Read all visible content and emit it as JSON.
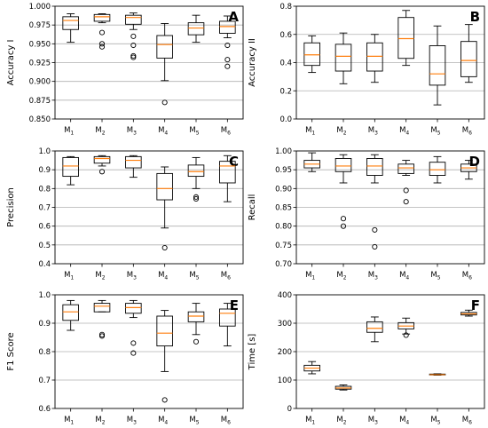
{
  "chart_data": [
    {
      "type": "box",
      "panel": "A",
      "ylabel": "Accuracy I",
      "categories": [
        "M1",
        "M2",
        "M3",
        "M4",
        "M5",
        "M6"
      ],
      "ylim": [
        0.85,
        1.0
      ],
      "yticks": [
        0.85,
        0.875,
        0.9,
        0.925,
        0.95,
        0.975,
        1.0
      ],
      "ytick_labels": [
        "0.850",
        "0.875",
        "0.900",
        "0.925",
        "0.950",
        "0.975",
        "1.000"
      ],
      "grid": true,
      "boxes": [
        {
          "whislo": 0.952,
          "q1": 0.969,
          "med": 0.981,
          "q3": 0.986,
          "whishi": 0.99,
          "fliers": []
        },
        {
          "whislo": 0.978,
          "q1": 0.98,
          "med": 0.986,
          "q3": 0.989,
          "whishi": 0.99,
          "fliers": [
            0.965,
            0.95,
            0.946
          ]
        },
        {
          "whislo": 0.969,
          "q1": 0.976,
          "med": 0.985,
          "q3": 0.988,
          "whishi": 0.991,
          "fliers": [
            0.96,
            0.948,
            0.934,
            0.932
          ]
        },
        {
          "whislo": 0.901,
          "q1": 0.931,
          "med": 0.949,
          "q3": 0.961,
          "whishi": 0.977,
          "fliers": [
            0.872
          ]
        },
        {
          "whislo": 0.952,
          "q1": 0.962,
          "med": 0.971,
          "q3": 0.978,
          "whishi": 0.988,
          "fliers": []
        },
        {
          "whislo": 0.958,
          "q1": 0.964,
          "med": 0.973,
          "q3": 0.98,
          "whishi": 0.987,
          "fliers": [
            0.948,
            0.929,
            0.92
          ]
        }
      ]
    },
    {
      "type": "box",
      "panel": "B",
      "ylabel": "Accuracy II",
      "categories": [
        "M1",
        "M2",
        "M3",
        "M4",
        "M5",
        "M6"
      ],
      "ylim": [
        0.0,
        0.8
      ],
      "yticks": [
        0.0,
        0.2,
        0.4,
        0.6,
        0.8
      ],
      "ytick_labels": [
        "0.0",
        "0.2",
        "0.4",
        "0.6",
        "0.8"
      ],
      "grid": true,
      "boxes": [
        {
          "whislo": 0.33,
          "q1": 0.38,
          "med": 0.455,
          "q3": 0.54,
          "whishi": 0.59,
          "fliers": []
        },
        {
          "whislo": 0.25,
          "q1": 0.34,
          "med": 0.445,
          "q3": 0.53,
          "whishi": 0.61,
          "fliers": []
        },
        {
          "whislo": 0.26,
          "q1": 0.34,
          "med": 0.445,
          "q3": 0.54,
          "whishi": 0.6,
          "fliers": []
        },
        {
          "whislo": 0.38,
          "q1": 0.43,
          "med": 0.57,
          "q3": 0.72,
          "whishi": 0.77,
          "fliers": []
        },
        {
          "whislo": 0.1,
          "q1": 0.24,
          "med": 0.32,
          "q3": 0.52,
          "whishi": 0.66,
          "fliers": []
        },
        {
          "whislo": 0.26,
          "q1": 0.3,
          "med": 0.415,
          "q3": 0.55,
          "whishi": 0.67,
          "fliers": []
        }
      ]
    },
    {
      "type": "box",
      "panel": "C",
      "ylabel": "Precision",
      "categories": [
        "M1",
        "M2",
        "M3",
        "M4",
        "M5",
        "M6"
      ],
      "ylim": [
        0.4,
        1.0
      ],
      "yticks": [
        0.4,
        0.5,
        0.6,
        0.7,
        0.8,
        0.9,
        1.0
      ],
      "ytick_labels": [
        "0.4",
        "0.5",
        "0.6",
        "0.7",
        "0.8",
        "0.9",
        "1.0"
      ],
      "grid": true,
      "boxes": [
        {
          "whislo": 0.82,
          "q1": 0.865,
          "med": 0.92,
          "q3": 0.965,
          "whishi": 0.97,
          "fliers": []
        },
        {
          "whislo": 0.92,
          "q1": 0.935,
          "med": 0.96,
          "q3": 0.97,
          "whishi": 0.975,
          "fliers": [
            0.89
          ]
        },
        {
          "whislo": 0.86,
          "q1": 0.91,
          "med": 0.95,
          "q3": 0.97,
          "whishi": 0.975,
          "fliers": []
        },
        {
          "whislo": 0.59,
          "q1": 0.74,
          "med": 0.8,
          "q3": 0.88,
          "whishi": 0.915,
          "fliers": [
            0.485
          ]
        },
        {
          "whislo": 0.8,
          "q1": 0.865,
          "med": 0.89,
          "q3": 0.925,
          "whishi": 0.965,
          "fliers": [
            0.755,
            0.745
          ]
        },
        {
          "whislo": 0.73,
          "q1": 0.83,
          "med": 0.92,
          "q3": 0.945,
          "whishi": 0.975,
          "fliers": []
        }
      ]
    },
    {
      "type": "box",
      "panel": "D",
      "ylabel": "Recall",
      "categories": [
        "M1",
        "M2",
        "M3",
        "M4",
        "M5",
        "M6"
      ],
      "ylim": [
        0.7,
        1.0
      ],
      "yticks": [
        0.7,
        0.75,
        0.8,
        0.85,
        0.9,
        0.95,
        1.0
      ],
      "ytick_labels": [
        "0.70",
        "0.75",
        "0.80",
        "0.85",
        "0.90",
        "0.95",
        "1.00"
      ],
      "grid": true,
      "boxes": [
        {
          "whislo": 0.945,
          "q1": 0.955,
          "med": 0.965,
          "q3": 0.975,
          "whishi": 0.995,
          "fliers": []
        },
        {
          "whislo": 0.915,
          "q1": 0.945,
          "med": 0.96,
          "q3": 0.98,
          "whishi": 0.99,
          "fliers": [
            0.82,
            0.8
          ]
        },
        {
          "whislo": 0.915,
          "q1": 0.935,
          "med": 0.96,
          "q3": 0.98,
          "whishi": 0.99,
          "fliers": [
            0.79,
            0.745
          ]
        },
        {
          "whislo": 0.935,
          "q1": 0.94,
          "med": 0.955,
          "q3": 0.965,
          "whishi": 0.975,
          "fliers": [
            0.895,
            0.865
          ]
        },
        {
          "whislo": 0.915,
          "q1": 0.935,
          "med": 0.95,
          "q3": 0.97,
          "whishi": 0.985,
          "fliers": []
        },
        {
          "whislo": 0.925,
          "q1": 0.945,
          "med": 0.955,
          "q3": 0.965,
          "whishi": 0.975,
          "fliers": []
        }
      ]
    },
    {
      "type": "box",
      "panel": "E",
      "ylabel": "F1 Score",
      "categories": [
        "M1",
        "M2",
        "M3",
        "M4",
        "M5",
        "M6"
      ],
      "ylim": [
        0.6,
        1.0
      ],
      "yticks": [
        0.6,
        0.7,
        0.8,
        0.9,
        1.0
      ],
      "ytick_labels": [
        "0.6",
        "0.7",
        "0.8",
        "0.9",
        "1.0"
      ],
      "grid": true,
      "boxes": [
        {
          "whislo": 0.875,
          "q1": 0.91,
          "med": 0.94,
          "q3": 0.965,
          "whishi": 0.98,
          "fliers": []
        },
        {
          "whislo": 0.94,
          "q1": 0.94,
          "med": 0.96,
          "q3": 0.97,
          "whishi": 0.98,
          "fliers": [
            0.86,
            0.855
          ]
        },
        {
          "whislo": 0.92,
          "q1": 0.935,
          "med": 0.955,
          "q3": 0.97,
          "whishi": 0.98,
          "fliers": [
            0.83,
            0.795
          ]
        },
        {
          "whislo": 0.73,
          "q1": 0.82,
          "med": 0.865,
          "q3": 0.925,
          "whishi": 0.945,
          "fliers": [
            0.63
          ]
        },
        {
          "whislo": 0.86,
          "q1": 0.905,
          "med": 0.925,
          "q3": 0.94,
          "whishi": 0.97,
          "fliers": [
            0.835
          ]
        },
        {
          "whislo": 0.82,
          "q1": 0.89,
          "med": 0.935,
          "q3": 0.95,
          "whishi": 0.97,
          "fliers": []
        }
      ]
    },
    {
      "type": "box",
      "panel": "F",
      "ylabel": "Time [s]",
      "categories": [
        "M1",
        "M2",
        "M3",
        "M4",
        "M5",
        "M6"
      ],
      "ylim": [
        0,
        400
      ],
      "yticks": [
        0,
        100,
        200,
        300,
        400
      ],
      "ytick_labels": [
        "0",
        "100",
        "200",
        "300",
        "400"
      ],
      "grid": true,
      "boxes": [
        {
          "whislo": 122,
          "q1": 132,
          "med": 142,
          "q3": 152,
          "whishi": 165,
          "fliers": []
        },
        {
          "whislo": 65,
          "q1": 68,
          "med": 72,
          "q3": 78,
          "whishi": 83,
          "fliers": []
        },
        {
          "whislo": 235,
          "q1": 268,
          "med": 282,
          "q3": 305,
          "whishi": 322,
          "fliers": []
        },
        {
          "whislo": 262,
          "q1": 280,
          "med": 290,
          "q3": 302,
          "whishi": 318,
          "fliers": [
            258
          ]
        },
        {
          "whislo": 117,
          "q1": 118,
          "med": 119,
          "q3": 121,
          "whishi": 122,
          "fliers": []
        },
        {
          "whislo": 325,
          "q1": 329,
          "med": 333,
          "q3": 338,
          "whishi": 346,
          "fliers": []
        }
      ]
    }
  ],
  "colors": {
    "median": "#ff7f0e",
    "grid": "#b0b0b0",
    "box": "#000000"
  }
}
